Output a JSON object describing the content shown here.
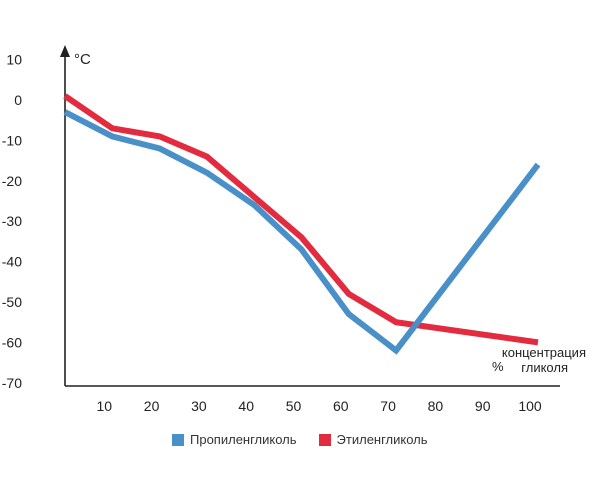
{
  "chart_data": {
    "type": "line",
    "title": "",
    "xlabel": "концентрация гликоля",
    "xunit": "%",
    "ylabel": "°C",
    "x_ticks": [
      10,
      20,
      30,
      40,
      50,
      60,
      70,
      80,
      90,
      100
    ],
    "y_ticks": [
      10,
      0,
      -10,
      -20,
      -30,
      -40,
      -50,
      -60,
      -70
    ],
    "xlim": [
      0,
      100
    ],
    "ylim": [
      -70,
      10
    ],
    "grid": false,
    "legend_position": "bottom",
    "series": [
      {
        "name": "Пропиленгликоль",
        "color": "#4a90c8",
        "x": [
          0,
          10,
          20,
          30,
          40,
          50,
          60,
          70,
          100
        ],
        "y": [
          -3,
          -9,
          -12,
          -18,
          -26,
          -37,
          -53,
          -62,
          -16
        ]
      },
      {
        "name": "Этиленгликоль",
        "color": "#e32b3f",
        "x": [
          0,
          10,
          20,
          30,
          40,
          50,
          60,
          70,
          100
        ],
        "y": [
          1,
          -7,
          -9,
          -14,
          -24,
          -34,
          -48,
          -55,
          -60
        ]
      }
    ]
  }
}
